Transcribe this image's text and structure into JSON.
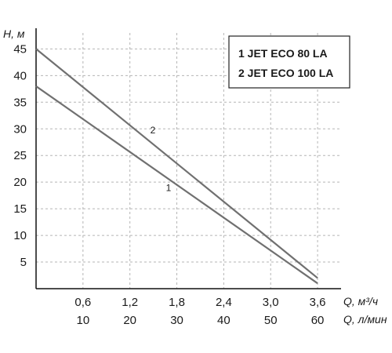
{
  "chart_data": {
    "type": "line",
    "ylabel": "H, м",
    "xlabel": "Q, м³/ч",
    "xlabel_secondary": "Q, л/мин",
    "x_ticks": [
      "0,6",
      "1,2",
      "1,8",
      "2,4",
      "3,0",
      "3,6"
    ],
    "x_ticks_secondary": [
      "10",
      "20",
      "30",
      "40",
      "50",
      "60"
    ],
    "y_ticks": [
      "5",
      "10",
      "15",
      "20",
      "25",
      "30",
      "35",
      "40",
      "45"
    ],
    "xlim": [
      0,
      3.9
    ],
    "ylim": [
      0,
      48
    ],
    "grid": true,
    "legend_position": "top-right",
    "legend": [
      "1 JET ECO 80 LA",
      "2 JET ECO 100 LA"
    ],
    "series": [
      {
        "label": "1",
        "color": "#707070",
        "x": [
          0,
          3.6
        ],
        "y": [
          38,
          1
        ]
      },
      {
        "label": "2",
        "color": "#707070",
        "x": [
          0,
          3.6
        ],
        "y": [
          45,
          2
        ]
      }
    ]
  }
}
